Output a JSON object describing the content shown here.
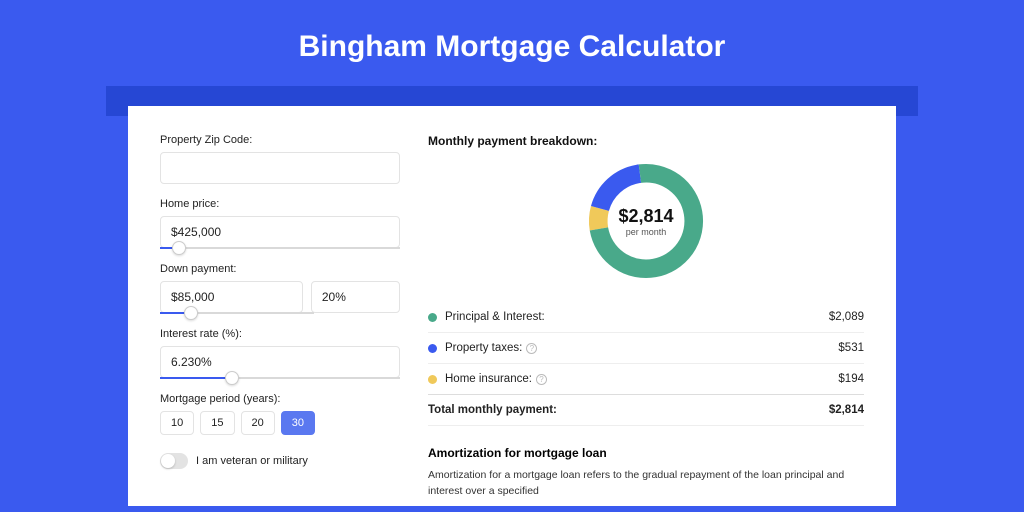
{
  "title": "Bingham Mortgage Calculator",
  "colors": {
    "principal": "#49a98a",
    "taxes": "#3a5aef",
    "insurance": "#f0c95a",
    "accent": "#3a5aef",
    "background": "#3a5aef"
  },
  "form": {
    "zip": {
      "label": "Property Zip Code:",
      "value": ""
    },
    "home_price": {
      "label": "Home price:",
      "value": "$425,000",
      "slider_pct": 8
    },
    "down_payment": {
      "label": "Down payment:",
      "amount": "$85,000",
      "percent": "20%",
      "slider_pct": 20
    },
    "interest_rate": {
      "label": "Interest rate (%):",
      "value": "6.230%",
      "slider_pct": 30
    },
    "period": {
      "label": "Mortgage period (years):",
      "options": [
        "10",
        "15",
        "20",
        "30"
      ],
      "selected": "30"
    },
    "veteran": {
      "label": "I am veteran or military",
      "checked": false
    }
  },
  "breakdown": {
    "title": "Monthly payment breakdown:",
    "donut": {
      "amount": "$2,814",
      "sub": "per month",
      "slices": [
        {
          "key": "principal",
          "value": 2089,
          "color": "#49a98a"
        },
        {
          "key": "taxes",
          "value": 531,
          "color": "#3a5aef"
        },
        {
          "key": "insurance",
          "value": 194,
          "color": "#f0c95a"
        }
      ],
      "stroke_width": 16
    },
    "rows": [
      {
        "label": "Principal & Interest:",
        "amount": "$2,089",
        "color": "#49a98a",
        "help": false
      },
      {
        "label": "Property taxes:",
        "amount": "$531",
        "color": "#3a5aef",
        "help": true
      },
      {
        "label": "Home insurance:",
        "amount": "$194",
        "color": "#f0c95a",
        "help": true
      }
    ],
    "total": {
      "label": "Total monthly payment:",
      "amount": "$2,814"
    }
  },
  "amortization": {
    "title": "Amortization for mortgage loan",
    "text": "Amortization for a mortgage loan refers to the gradual repayment of the loan principal and interest over a specified"
  }
}
